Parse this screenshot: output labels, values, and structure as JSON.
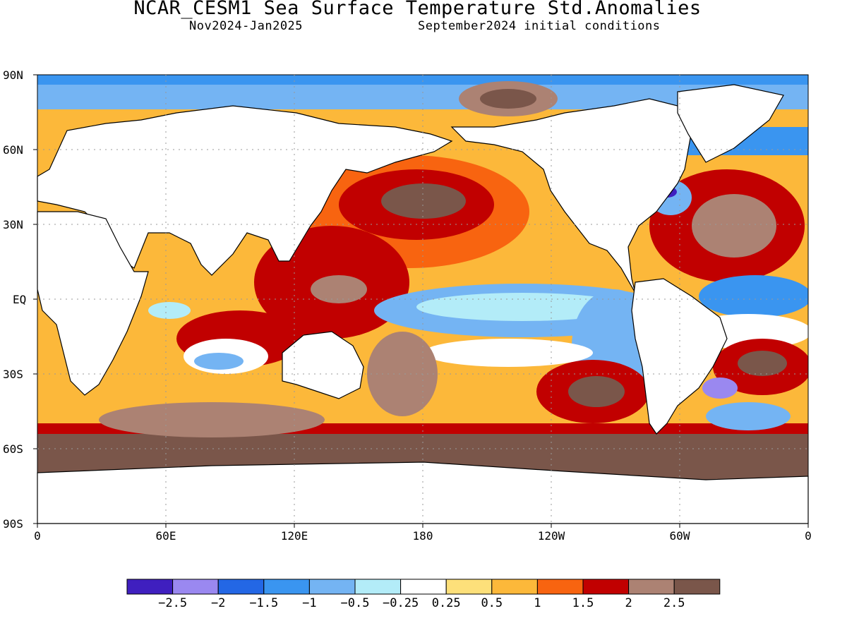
{
  "title": "NCAR_CESM1 Sea Surface Temperature Std.Anomalies",
  "subtitle_left": "Nov2024-Jan2025",
  "subtitle_right": "September2024 initial conditions",
  "lat_labels": [
    "90N",
    "60N",
    "30N",
    "EQ",
    "30S",
    "60S",
    "90S"
  ],
  "lon_labels": [
    "0",
    "60E",
    "120E",
    "180",
    "120W",
    "60W",
    "0"
  ],
  "colorbar": {
    "colors": [
      "#3f1fbf",
      "#9a88f0",
      "#2367e5",
      "#3a95f0",
      "#74b4f3",
      "#b3ecf8",
      "#ffffff",
      "#fde07a",
      "#fcb83a",
      "#f86410",
      "#c10000",
      "#ac8273",
      "#7a564a"
    ],
    "tick_labels": [
      "-2.5",
      "-2",
      "-1.5",
      "-1",
      "-0.5",
      "-0.25",
      "0.25",
      "0.5",
      "1",
      "1.5",
      "2",
      "2.5"
    ]
  }
}
